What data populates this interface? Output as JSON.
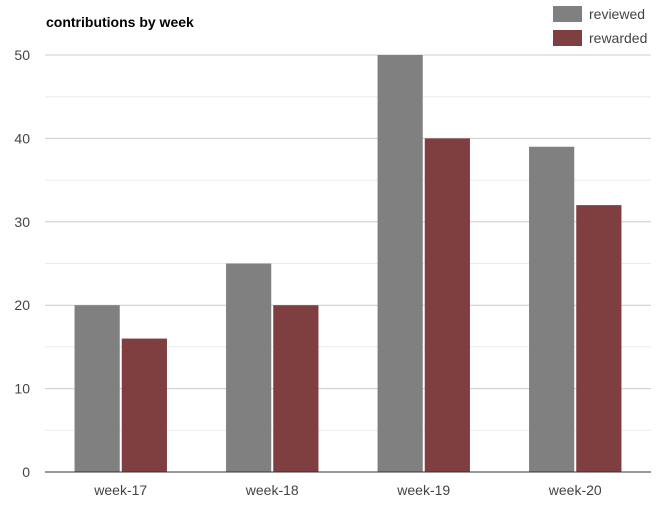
{
  "chart_data": {
    "type": "bar",
    "title": "contributions by week",
    "xlabel": "",
    "ylabel": "",
    "categories": [
      "week-17",
      "week-18",
      "week-19",
      "week-20"
    ],
    "series": [
      {
        "name": "reviewed",
        "color": "#808080",
        "values": [
          20,
          25,
          50,
          39
        ]
      },
      {
        "name": "rewarded",
        "color": "#7f3e3f",
        "values": [
          16,
          20,
          40,
          32
        ]
      }
    ],
    "ylim": [
      0,
      50
    ],
    "yticks": [
      "0",
      "10",
      "20",
      "30",
      "40",
      "50"
    ],
    "grid": true,
    "legend": "top-right"
  }
}
